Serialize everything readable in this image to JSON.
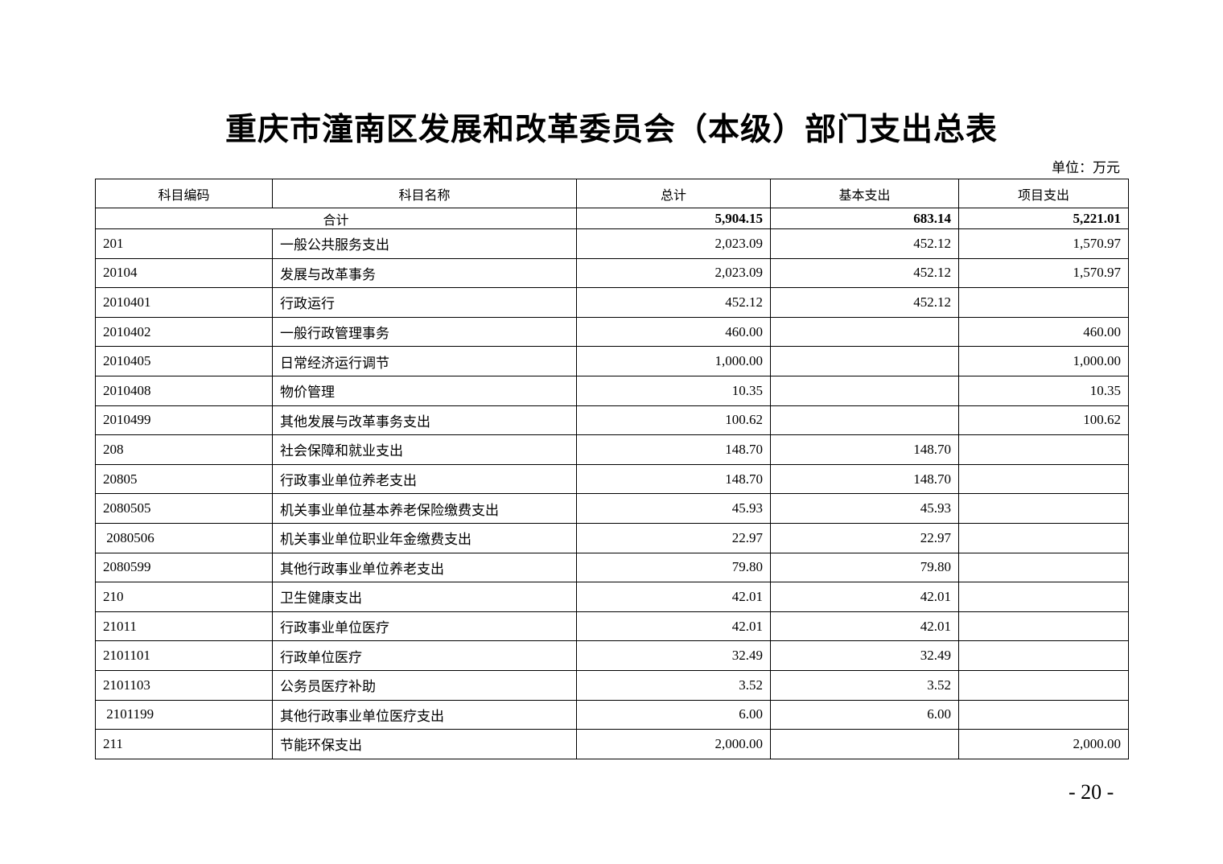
{
  "title": "重庆市潼南区发展和改革委员会（本级）部门支出总表",
  "unit": "单位：万元",
  "columns": [
    "科目编码",
    "科目名称",
    "总计",
    "基本支出",
    "项目支出"
  ],
  "total": {
    "label": "合计",
    "total": "5,904.15",
    "basic": "683.14",
    "project": "5,221.01"
  },
  "rows": [
    {
      "code": "201",
      "name": "一般公共服务支出",
      "total": "2,023.09",
      "basic": "452.12",
      "project": "1,570.97"
    },
    {
      "code": "20104",
      "name": "发展与改革事务",
      "total": "2,023.09",
      "basic": "452.12",
      "project": "1,570.97"
    },
    {
      "code": "2010401",
      "name": "行政运行",
      "total": "452.12",
      "basic": "452.12",
      "project": ""
    },
    {
      "code": "2010402",
      "name": "一般行政管理事务",
      "total": "460.00",
      "basic": "",
      "project": "460.00"
    },
    {
      "code": "2010405",
      "name": "日常经济运行调节",
      "total": "1,000.00",
      "basic": "",
      "project": "1,000.00"
    },
    {
      "code": "2010408",
      "name": "物价管理",
      "total": "10.35",
      "basic": "",
      "project": "10.35"
    },
    {
      "code": "2010499",
      "name": "其他发展与改革事务支出",
      "total": "100.62",
      "basic": "",
      "project": "100.62"
    },
    {
      "code": "208",
      "name": "社会保障和就业支出",
      "total": "148.70",
      "basic": "148.70",
      "project": ""
    },
    {
      "code": "20805",
      "name": "行政事业单位养老支出",
      "total": "148.70",
      "basic": "148.70",
      "project": ""
    },
    {
      "code": "2080505",
      "name": "机关事业单位基本养老保险缴费支出",
      "total": "45.93",
      "basic": "45.93",
      "project": ""
    },
    {
      "code": " 2080506",
      "name": "机关事业单位职业年金缴费支出",
      "total": "22.97",
      "basic": "22.97",
      "project": ""
    },
    {
      "code": "2080599",
      "name": "其他行政事业单位养老支出",
      "total": "79.80",
      "basic": "79.80",
      "project": ""
    },
    {
      "code": "210",
      "name": "卫生健康支出",
      "total": "42.01",
      "basic": "42.01",
      "project": ""
    },
    {
      "code": "21011",
      "name": "行政事业单位医疗",
      "total": "42.01",
      "basic": "42.01",
      "project": ""
    },
    {
      "code": "2101101",
      "name": "行政单位医疗",
      "total": "32.49",
      "basic": "32.49",
      "project": ""
    },
    {
      "code": "2101103",
      "name": "公务员医疗补助",
      "total": "3.52",
      "basic": "3.52",
      "project": ""
    },
    {
      "code": " 2101199",
      "name": "其他行政事业单位医疗支出",
      "total": "6.00",
      "basic": "6.00",
      "project": ""
    },
    {
      "code": "211",
      "name": "节能环保支出",
      "total": "2,000.00",
      "basic": "",
      "project": "2,000.00"
    }
  ],
  "page_number": "- 20 -"
}
